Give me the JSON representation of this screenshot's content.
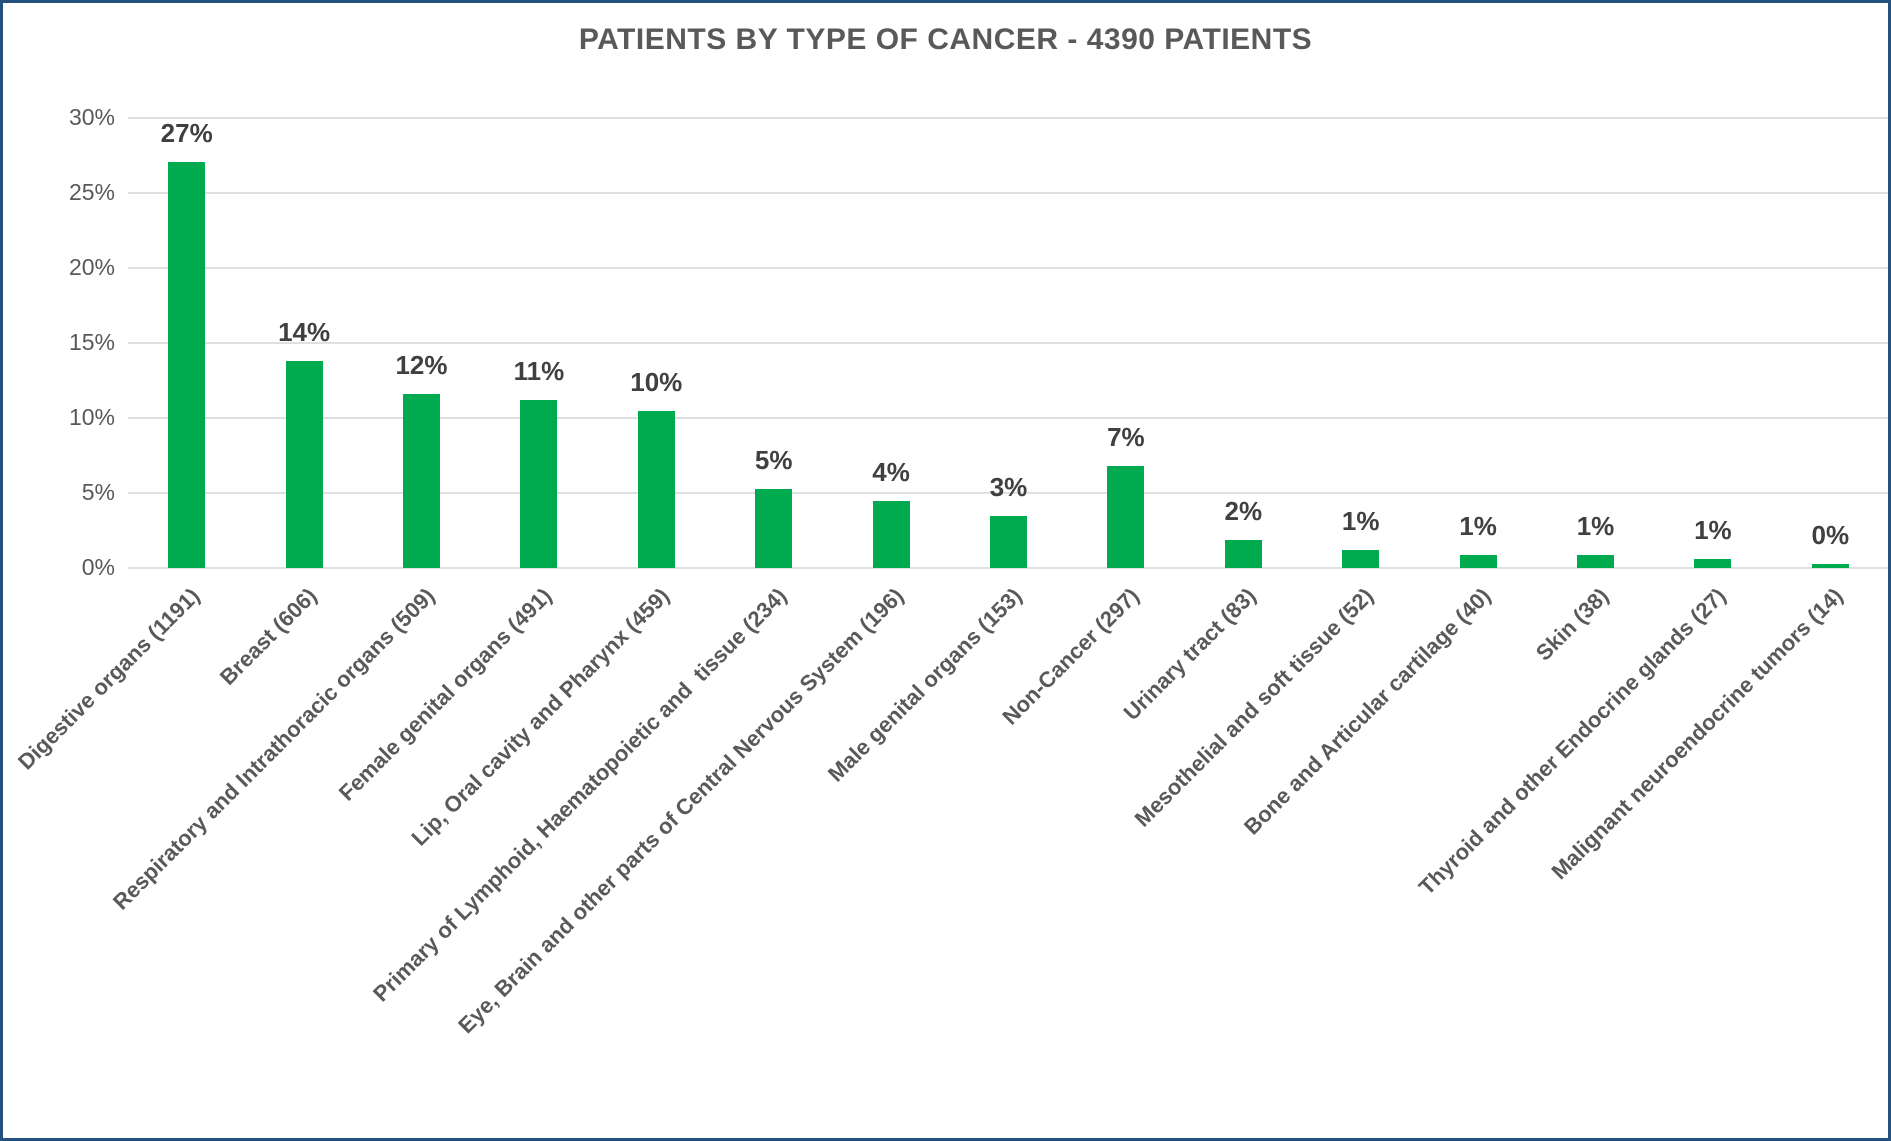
{
  "chart_data": {
    "type": "bar",
    "title": "PATIENTS BY TYPE OF CANCER - 4390 PATIENTS",
    "xlabel": "",
    "ylabel": "",
    "ylim": [
      0,
      30
    ],
    "grid": true,
    "legend": false,
    "y_ticks": [
      {
        "value": 0,
        "label": "0%"
      },
      {
        "value": 5,
        "label": "5%"
      },
      {
        "value": 10,
        "label": "10%"
      },
      {
        "value": 15,
        "label": "15%"
      },
      {
        "value": 20,
        "label": "20%"
      },
      {
        "value": 25,
        "label": "25%"
      },
      {
        "value": 30,
        "label": "30%"
      }
    ],
    "bars": [
      {
        "category": "Digestive organs (1191)",
        "count": 1191,
        "pct": 27.1,
        "label": "27%"
      },
      {
        "category": "Breast (606)",
        "count": 606,
        "pct": 13.8,
        "label": "14%"
      },
      {
        "category": "Respiratory and Intrathoracic organs (509)",
        "count": 509,
        "pct": 11.6,
        "label": "12%"
      },
      {
        "category": "Female genital organs (491)",
        "count": 491,
        "pct": 11.2,
        "label": "11%"
      },
      {
        "category": "Lip, Oral cavity and Pharynx (459)",
        "count": 459,
        "pct": 10.5,
        "label": "10%"
      },
      {
        "category": "Primary of Lymphoid, Haematopoietic and  tissue (234)",
        "count": 234,
        "pct": 5.3,
        "label": "5%"
      },
      {
        "category": "Eye, Brain and other parts of Central Nervous System (196)",
        "count": 196,
        "pct": 4.5,
        "label": "4%"
      },
      {
        "category": "Male genital organs (153)",
        "count": 153,
        "pct": 3.5,
        "label": "3%"
      },
      {
        "category": "Non-Cancer (297)",
        "count": 297,
        "pct": 6.8,
        "label": "7%"
      },
      {
        "category": "Urinary tract (83)",
        "count": 83,
        "pct": 1.9,
        "label": "2%"
      },
      {
        "category": "Mesothelial and soft tissue (52)",
        "count": 52,
        "pct": 1.2,
        "label": "1%"
      },
      {
        "category": "Bone and Articular cartilage (40)",
        "count": 40,
        "pct": 0.9,
        "label": "1%"
      },
      {
        "category": "Skin (38)",
        "count": 38,
        "pct": 0.9,
        "label": "1%"
      },
      {
        "category": "Thyroid and other Endocrine glands (27)",
        "count": 27,
        "pct": 0.6,
        "label": "1%"
      },
      {
        "category": "Malignant neuroendocrine tumors (14)",
        "count": 14,
        "pct": 0.3,
        "label": "0%"
      }
    ],
    "colors": {
      "bar": "#00AB4F",
      "grid": "#E0E0E0",
      "title": "#595959",
      "axis_text": "#595959",
      "data_label": "#404040",
      "frame_border": "#24517E",
      "background": "#FFFFFF"
    }
  }
}
